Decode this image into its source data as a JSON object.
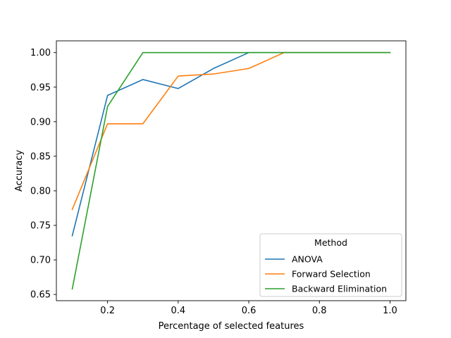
{
  "chart_data": {
    "type": "line",
    "title": "",
    "xlabel": "Percentage of selected features",
    "ylabel": "Accuracy",
    "xlim": [
      0.055,
      1.045
    ],
    "ylim": [
      0.641,
      1.017
    ],
    "x_ticks": [
      {
        "value": 0.2,
        "label": "0.2"
      },
      {
        "value": 0.4,
        "label": "0.4"
      },
      {
        "value": 0.6,
        "label": "0.6"
      },
      {
        "value": 0.8,
        "label": "0.8"
      },
      {
        "value": 1.0,
        "label": "1.0"
      }
    ],
    "y_ticks": [
      {
        "value": 0.65,
        "label": "0.65"
      },
      {
        "value": 0.7,
        "label": "0.70"
      },
      {
        "value": 0.75,
        "label": "0.75"
      },
      {
        "value": 0.8,
        "label": "0.80"
      },
      {
        "value": 0.85,
        "label": "0.85"
      },
      {
        "value": 0.9,
        "label": "0.90"
      },
      {
        "value": 0.95,
        "label": "0.95"
      },
      {
        "value": 1.0,
        "label": "1.00"
      }
    ],
    "grid": false,
    "legend": {
      "title": "Method",
      "placement": "lower-right"
    },
    "x": [
      0.1,
      0.2,
      0.3,
      0.4,
      0.5,
      0.6,
      0.7,
      0.8,
      0.9,
      1.0
    ],
    "series": [
      {
        "name": "ANOVA",
        "color": "#1f77b4",
        "values": [
          0.735,
          0.938,
          0.961,
          0.948,
          0.977,
          1.0,
          1.0,
          1.0,
          1.0,
          1.0
        ]
      },
      {
        "name": "Forward Selection",
        "color": "#ff7f0e",
        "values": [
          0.773,
          0.897,
          0.897,
          0.966,
          0.969,
          0.977,
          1.0,
          1.0,
          1.0,
          1.0
        ]
      },
      {
        "name": "Backward Elimination",
        "color": "#2ca02c",
        "values": [
          0.658,
          0.922,
          1.0,
          1.0,
          1.0,
          1.0,
          1.0,
          1.0,
          1.0,
          1.0
        ]
      }
    ]
  }
}
